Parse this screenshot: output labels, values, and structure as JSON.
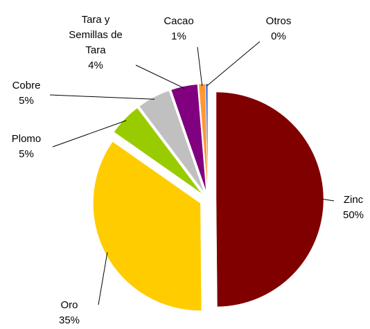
{
  "chart_data": {
    "type": "pie",
    "categories": [
      "Zinc",
      "Oro",
      "Plomo",
      "Cobre",
      "Tara y\nSemillas de\nTara",
      "Cacao",
      "Otros"
    ],
    "values": [
      50,
      35,
      5,
      5,
      4,
      1,
      0.3
    ],
    "value_labels": [
      "50%",
      "35%",
      "5%",
      "5%",
      "4%",
      "1%",
      "0%"
    ],
    "colors": [
      "#800000",
      "#ffcc00",
      "#99cc00",
      "#c0c0c0",
      "#800080",
      "#ff9933",
      "#3366cc"
    ]
  }
}
